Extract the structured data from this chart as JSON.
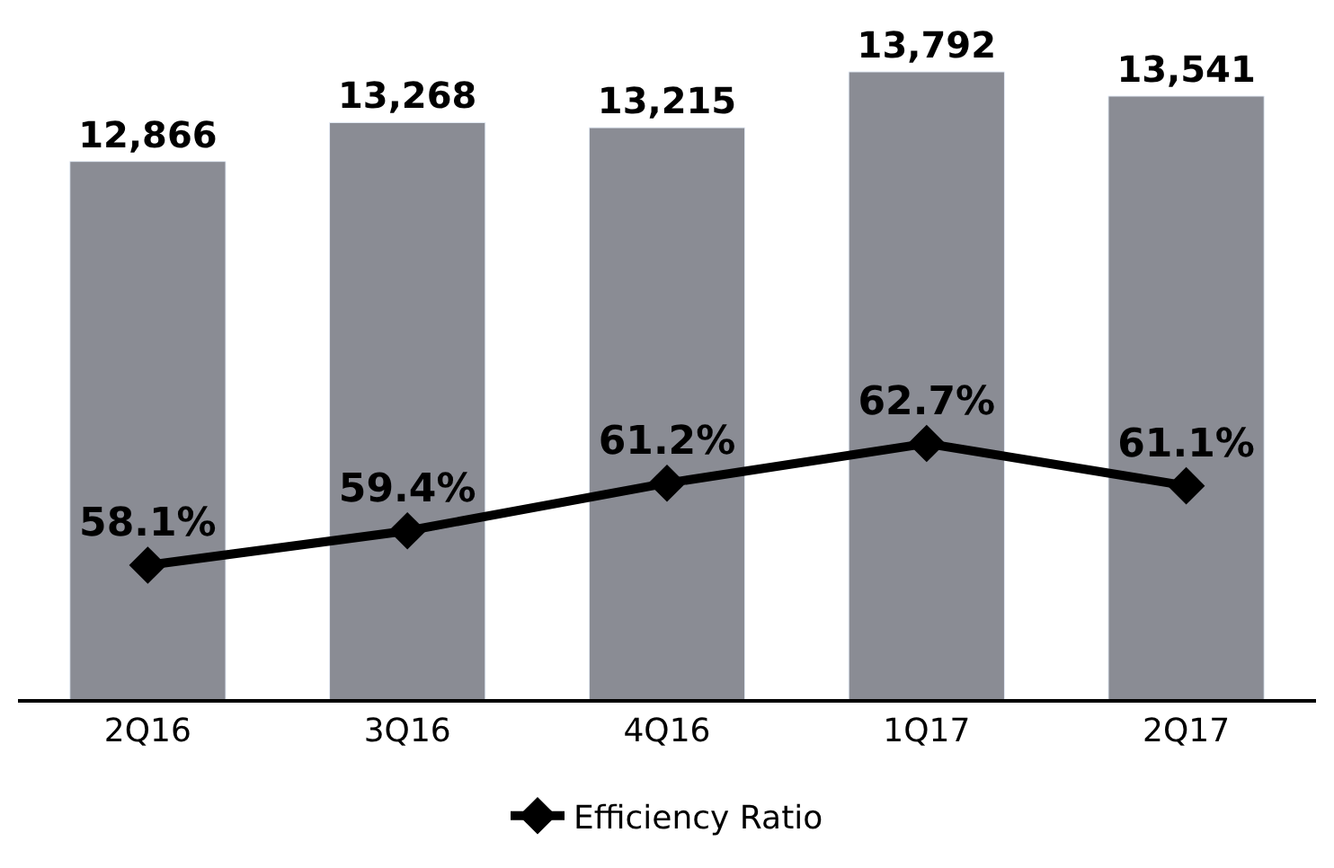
{
  "chart_data": {
    "type": "bar",
    "categories": [
      "2Q16",
      "3Q16",
      "4Q16",
      "1Q17",
      "2Q17"
    ],
    "series": [
      {
        "color": "#8a8c94",
        "values": [
          12866,
          13268,
          13215,
          13792,
          13541
        ],
        "value_labels": [
          "12,866",
          "13,268",
          "13,215",
          "13,792",
          "13,541"
        ]
      },
      {
        "type": "line",
        "name": "Efficiency Ratio",
        "color": "#000000",
        "axis": "y2",
        "marker": "diamond",
        "line_style": "solid",
        "values": [
          58.1,
          59.4,
          61.2,
          62.7,
          61.1
        ],
        "value_labels": [
          "58.1%",
          "59.4%",
          "61.2%",
          "62.7%",
          "61.1%"
        ]
      }
    ],
    "tick_labels": "x",
    "legend": "bottom"
  }
}
